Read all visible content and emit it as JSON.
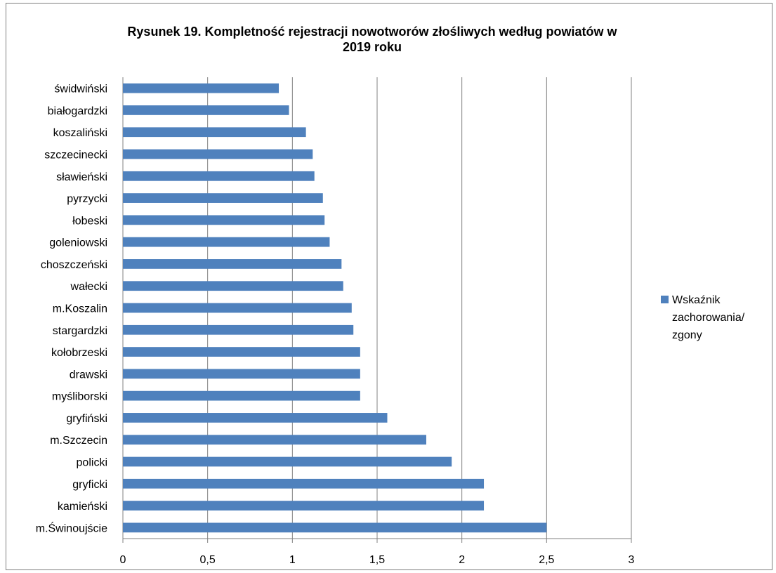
{
  "chart_data": {
    "type": "bar",
    "orientation": "horizontal",
    "title": "Rysunek 19. Kompletność rejestracji nowotworów złośliwych według powiatów w 2019 roku",
    "title_lines": [
      "Rysunek 19. Kompletność rejestracji nowotworów złośliwych według powiatów w",
      "2019 roku"
    ],
    "categories": [
      "świdwiński",
      "białogardzki",
      "koszaliński",
      "szczecinecki",
      "sławieński",
      "pyrzycki",
      "łobeski",
      "goleniowski",
      "choszczeński",
      "wałecki",
      "m.Koszalin",
      "stargardzki",
      "kołobrzeski",
      "drawski",
      "myśliborski",
      "gryfiński",
      "m.Szczecin",
      "policki",
      "gryficki",
      "kamieński",
      "m.Świnoujście"
    ],
    "series": [
      {
        "name": "Wskaźnik zachorowania/ zgony",
        "legend_lines": [
          "Wskaźnik",
          "zachorowania/",
          "zgony"
        ],
        "color": "#4f81bd",
        "values": [
          0.92,
          0.98,
          1.08,
          1.12,
          1.13,
          1.18,
          1.19,
          1.22,
          1.29,
          1.3,
          1.35,
          1.36,
          1.4,
          1.4,
          1.4,
          1.56,
          1.79,
          1.94,
          2.13,
          2.13,
          2.5
        ]
      }
    ],
    "xlim": [
      0,
      3
    ],
    "xticks": [
      0,
      0.5,
      1,
      1.5,
      2,
      2.5,
      3
    ],
    "xtick_labels": [
      "0",
      "0,5",
      "1",
      "1,5",
      "2",
      "2,5",
      "3"
    ],
    "grid": "vertical",
    "legend": "right",
    "gridline_color": "#808080",
    "axis_color": "#808080"
  }
}
